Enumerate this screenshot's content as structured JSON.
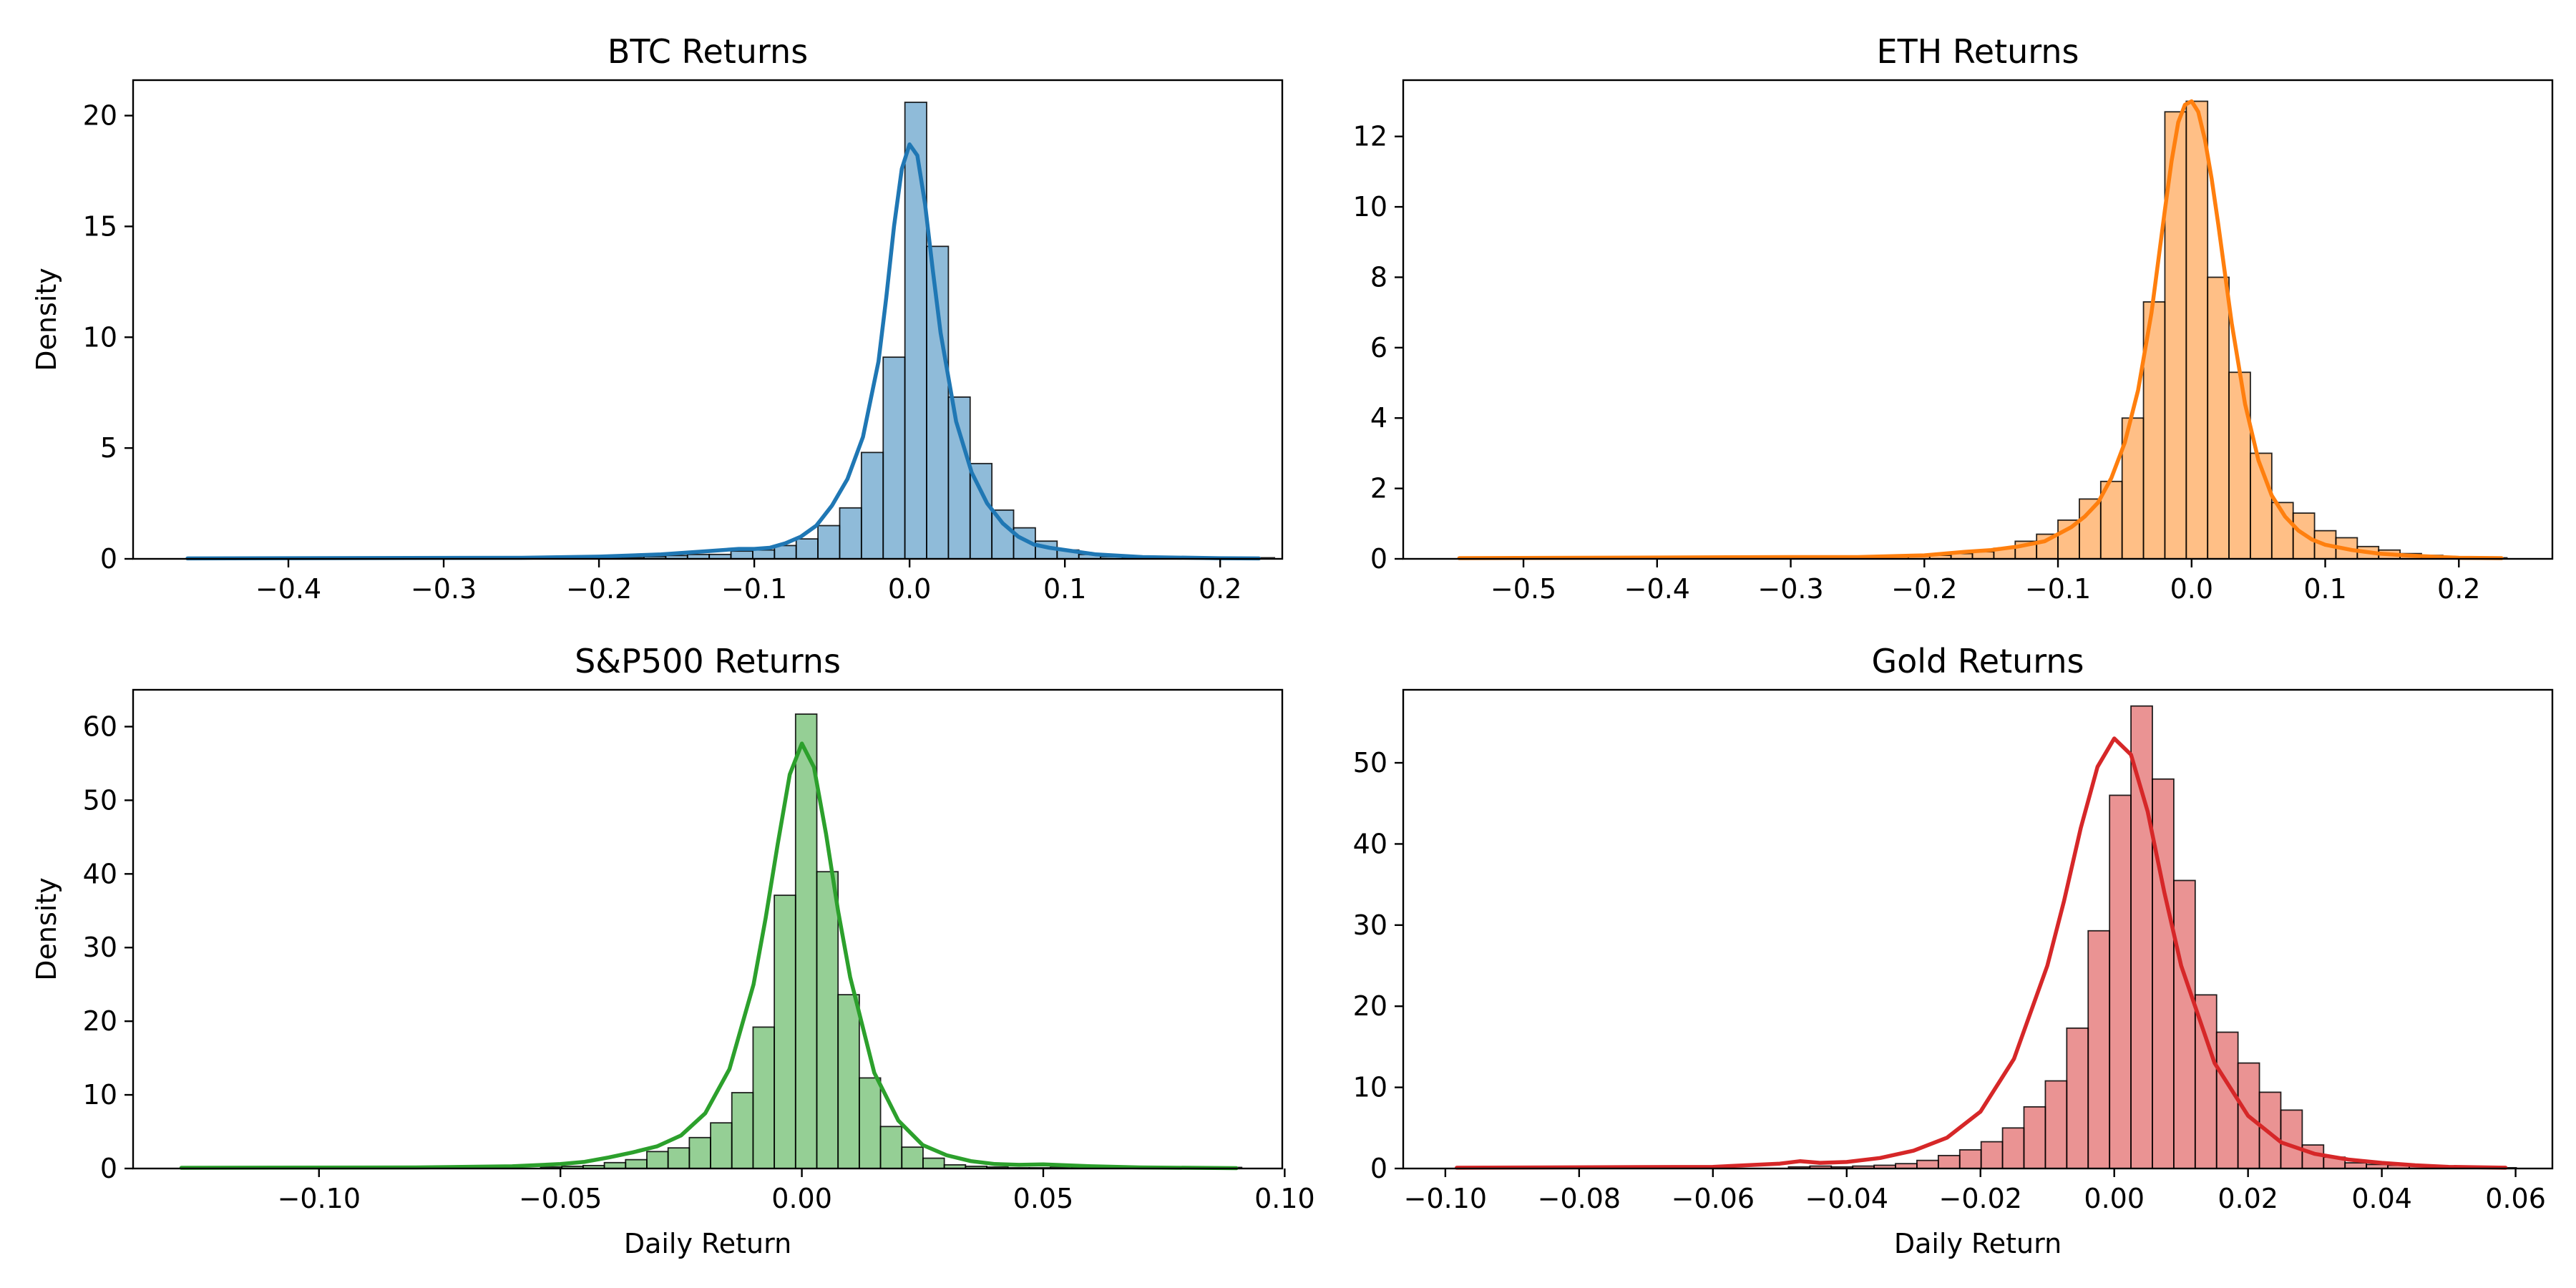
{
  "chart_data": [
    {
      "type": "histogram",
      "title": "BTC Returns",
      "xlabel": "",
      "ylabel": "Density",
      "color": "#1f77b4",
      "xlim": [
        -0.5,
        0.24
      ],
      "ylim": [
        0,
        21.6
      ],
      "xticks": [
        -0.4,
        -0.3,
        -0.2,
        -0.1,
        0.0,
        0.1,
        0.2
      ],
      "xtick_labels": [
        "−0.4",
        "−0.3",
        "−0.2",
        "−0.1",
        "0.0",
        "0.1",
        "0.2"
      ],
      "yticks": [
        0,
        5,
        10,
        15,
        20
      ],
      "ytick_labels": [
        "0",
        "5",
        "10",
        "15",
        "20"
      ],
      "bins": {
        "x": [
          -0.465,
          -0.451,
          -0.437,
          -0.423,
          -0.409,
          -0.395,
          -0.381,
          -0.367,
          -0.353,
          -0.339,
          -0.325,
          -0.311,
          -0.297,
          -0.283,
          -0.269,
          -0.255,
          -0.241,
          -0.227,
          -0.213,
          -0.199,
          -0.185,
          -0.171,
          -0.157,
          -0.143,
          -0.129,
          -0.115,
          -0.101,
          -0.087,
          -0.073,
          -0.059,
          -0.045,
          -0.031,
          -0.017,
          -0.003,
          0.011,
          0.025,
          0.039,
          0.053,
          0.067,
          0.081,
          0.095,
          0.109,
          0.123,
          0.137,
          0.151,
          0.165,
          0.179,
          0.193,
          0.207,
          0.221
        ],
        "density": [
          0.05,
          0,
          0,
          0,
          0,
          0,
          0,
          0,
          0,
          0,
          0,
          0,
          0,
          0,
          0,
          0,
          0,
          0,
          0,
          0.05,
          0.05,
          0.1,
          0.15,
          0.2,
          0.2,
          0.35,
          0.4,
          0.6,
          0.9,
          1.5,
          2.3,
          4.8,
          9.1,
          20.6,
          14.1,
          7.3,
          4.3,
          2.2,
          1.4,
          0.8,
          0.4,
          0.2,
          0.1,
          0.05,
          0.05,
          0,
          0,
          0,
          0,
          0.05
        ],
        "width": 0.014
      },
      "kde": {
        "x": [
          -0.465,
          -0.25,
          -0.2,
          -0.16,
          -0.13,
          -0.11,
          -0.1,
          -0.09,
          -0.08,
          -0.07,
          -0.06,
          -0.05,
          -0.04,
          -0.03,
          -0.02,
          -0.015,
          -0.01,
          -0.005,
          0.0,
          0.005,
          0.01,
          0.015,
          0.02,
          0.03,
          0.04,
          0.05,
          0.06,
          0.07,
          0.08,
          0.09,
          0.1,
          0.12,
          0.15,
          0.2,
          0.225
        ],
        "y": [
          0.02,
          0.05,
          0.1,
          0.2,
          0.35,
          0.45,
          0.45,
          0.5,
          0.7,
          1.0,
          1.5,
          2.4,
          3.6,
          5.5,
          8.9,
          11.8,
          15.0,
          17.6,
          18.7,
          18.2,
          16.0,
          13.0,
          10.2,
          6.2,
          3.9,
          2.5,
          1.6,
          1.0,
          0.65,
          0.5,
          0.4,
          0.2,
          0.08,
          0.03,
          0.02
        ]
      }
    },
    {
      "type": "histogram",
      "title": "ETH Returns",
      "xlabel": "",
      "ylabel": "",
      "color": "#ff7f0e",
      "xlim": [
        -0.59,
        0.27
      ],
      "ylim": [
        0,
        13.6
      ],
      "xticks": [
        -0.5,
        -0.4,
        -0.3,
        -0.2,
        -0.1,
        0.0,
        0.1,
        0.2
      ],
      "xtick_labels": [
        "−0.5",
        "−0.4",
        "−0.3",
        "−0.2",
        "−0.1",
        "0.0",
        "0.1",
        "0.2"
      ],
      "yticks": [
        0,
        2,
        4,
        6,
        8,
        10,
        12
      ],
      "ytick_labels": [
        "0",
        "2",
        "4",
        "6",
        "8",
        "10",
        "12"
      ],
      "bins": {
        "x": [
          -0.548,
          -0.532,
          -0.516,
          -0.5,
          -0.484,
          -0.468,
          -0.452,
          -0.436,
          -0.42,
          -0.404,
          -0.388,
          -0.372,
          -0.356,
          -0.34,
          -0.324,
          -0.308,
          -0.292,
          -0.276,
          -0.26,
          -0.244,
          -0.228,
          -0.212,
          -0.196,
          -0.18,
          -0.164,
          -0.148,
          -0.132,
          -0.116,
          -0.1,
          -0.084,
          -0.068,
          -0.052,
          -0.036,
          -0.02,
          -0.004,
          0.012,
          0.028,
          0.044,
          0.06,
          0.076,
          0.092,
          0.108,
          0.124,
          0.14,
          0.156,
          0.172,
          0.188,
          0.204,
          0.22
        ],
        "density": [
          0.03,
          0,
          0,
          0,
          0,
          0,
          0,
          0,
          0,
          0,
          0,
          0,
          0,
          0,
          0,
          0,
          0.03,
          0,
          0,
          0,
          0.05,
          0.08,
          0.1,
          0.15,
          0.2,
          0.3,
          0.5,
          0.7,
          1.1,
          1.7,
          2.2,
          4.0,
          7.3,
          12.7,
          13.0,
          8.0,
          5.3,
          3.0,
          1.6,
          1.3,
          0.8,
          0.6,
          0.35,
          0.25,
          0.15,
          0.1,
          0.05,
          0.05,
          0.03
        ],
        "width": 0.016
      },
      "kde": {
        "x": [
          -0.548,
          -0.3,
          -0.25,
          -0.2,
          -0.17,
          -0.15,
          -0.13,
          -0.11,
          -0.09,
          -0.08,
          -0.07,
          -0.06,
          -0.05,
          -0.04,
          -0.03,
          -0.02,
          -0.015,
          -0.01,
          -0.005,
          0.0,
          0.005,
          0.01,
          0.015,
          0.02,
          0.03,
          0.04,
          0.05,
          0.06,
          0.07,
          0.08,
          0.09,
          0.1,
          0.12,
          0.14,
          0.16,
          0.2,
          0.232
        ],
        "y": [
          0.02,
          0.05,
          0.05,
          0.1,
          0.2,
          0.25,
          0.35,
          0.5,
          0.9,
          1.2,
          1.6,
          2.3,
          3.3,
          4.8,
          7.0,
          9.9,
          11.3,
          12.4,
          12.9,
          13.0,
          12.7,
          11.9,
          10.8,
          9.5,
          6.7,
          4.4,
          2.8,
          1.8,
          1.2,
          0.8,
          0.55,
          0.4,
          0.25,
          0.15,
          0.1,
          0.03,
          0.02
        ]
      }
    },
    {
      "type": "histogram",
      "title": "S&P500 Returns",
      "xlabel": "Daily Return",
      "ylabel": "Density",
      "color": "#2ca02c",
      "xlim": [
        -0.1385,
        0.0995
      ],
      "ylim": [
        0,
        65
      ],
      "xticks": [
        -0.1,
        -0.05,
        0.0,
        0.05,
        0.1
      ],
      "xtick_labels": [
        "−0.10",
        "−0.05",
        "0.00",
        "0.05",
        "0.10"
      ],
      "yticks": [
        0,
        10,
        20,
        30,
        40,
        50,
        60
      ],
      "ytick_labels": [
        "0",
        "10",
        "20",
        "30",
        "40",
        "50",
        "60"
      ],
      "bins": {
        "x": [
          -0.1245,
          -0.1201,
          -0.1157,
          -0.1113,
          -0.1069,
          -0.1025,
          -0.0981,
          -0.0937,
          -0.0893,
          -0.0849,
          -0.0805,
          -0.0761,
          -0.0717,
          -0.0673,
          -0.0629,
          -0.0585,
          -0.0541,
          -0.0497,
          -0.0453,
          -0.0409,
          -0.0365,
          -0.0321,
          -0.0277,
          -0.0233,
          -0.0189,
          -0.0145,
          -0.0101,
          -0.0057,
          -0.0013,
          0.0031,
          0.0075,
          0.0119,
          0.0163,
          0.0207,
          0.0251,
          0.0295,
          0.0339,
          0.0383,
          0.0427,
          0.0471,
          0.0515,
          0.0559,
          0.0603,
          0.0647,
          0.0691,
          0.0735,
          0.0779,
          0.0823,
          0.0867
        ],
        "density": [
          0.15,
          0,
          0,
          0,
          0,
          0,
          0,
          0,
          0,
          0,
          0,
          0,
          0,
          0,
          0,
          0,
          0.2,
          0.3,
          0.4,
          0.8,
          1.2,
          2.3,
          2.8,
          4.2,
          6.2,
          10.3,
          19.2,
          37.1,
          61.7,
          40.3,
          23.6,
          12.3,
          5.7,
          2.9,
          1.4,
          0.5,
          0.3,
          0.2,
          0.1,
          0.1,
          0.2,
          0.1,
          0,
          0,
          0,
          0,
          0,
          0,
          0.15
        ],
        "width": 0.0044
      },
      "kde": {
        "x": [
          -0.1285,
          -0.08,
          -0.06,
          -0.05,
          -0.045,
          -0.04,
          -0.035,
          -0.03,
          -0.025,
          -0.02,
          -0.015,
          -0.01,
          -0.0075,
          -0.005,
          -0.0025,
          0.0,
          0.0025,
          0.005,
          0.0075,
          0.01,
          0.015,
          0.02,
          0.025,
          0.03,
          0.035,
          0.04,
          0.045,
          0.05,
          0.06,
          0.07,
          0.09
        ],
        "y": [
          0.1,
          0.15,
          0.3,
          0.6,
          0.9,
          1.5,
          2.2,
          3.0,
          4.5,
          7.5,
          13.5,
          25.0,
          34.0,
          44.0,
          53.5,
          57.7,
          54.5,
          45.5,
          35.0,
          26.0,
          13.0,
          6.5,
          3.2,
          1.8,
          1.0,
          0.6,
          0.5,
          0.55,
          0.3,
          0.15,
          0.05
        ]
      }
    },
    {
      "type": "histogram",
      "title": "Gold Returns",
      "xlabel": "Daily Return",
      "ylabel": "",
      "color": "#d62728",
      "xlim": [
        -0.1063,
        0.0655
      ],
      "ylim": [
        0,
        59
      ],
      "xticks": [
        -0.1,
        -0.08,
        -0.06,
        -0.04,
        -0.02,
        0.0,
        0.02,
        0.04,
        0.06
      ],
      "xtick_labels": [
        "−0.10",
        "−0.08",
        "−0.06",
        "−0.04",
        "−0.02",
        "0.00",
        "0.02",
        "0.04",
        "0.06"
      ],
      "yticks": [
        0,
        10,
        20,
        30,
        40,
        50
      ],
      "ytick_labels": [
        "0",
        "10",
        "20",
        "30",
        "40",
        "50"
      ],
      "bins": {
        "x": [
          -0.0967,
          -0.0935,
          -0.0903,
          -0.0871,
          -0.0839,
          -0.0807,
          -0.0775,
          -0.0743,
          -0.0711,
          -0.0679,
          -0.0647,
          -0.0615,
          -0.0583,
          -0.0551,
          -0.0519,
          -0.0487,
          -0.0455,
          -0.0423,
          -0.0391,
          -0.0359,
          -0.0327,
          -0.0295,
          -0.0263,
          -0.0231,
          -0.0199,
          -0.0167,
          -0.0135,
          -0.0103,
          -0.0071,
          -0.0039,
          -0.0007,
          0.0025,
          0.0057,
          0.0089,
          0.0121,
          0.0153,
          0.0185,
          0.0217,
          0.0249,
          0.0281,
          0.0313,
          0.0345,
          0.0377,
          0.0409,
          0.0441,
          0.0473,
          0.0505,
          0.0537,
          0.0569
        ],
        "density": [
          0.15,
          0,
          0,
          0,
          0,
          0,
          0,
          0,
          0,
          0,
          0,
          0,
          0,
          0,
          0,
          0.2,
          0.3,
          0.2,
          0.3,
          0.4,
          0.6,
          1.0,
          1.6,
          2.3,
          3.3,
          5.0,
          7.6,
          10.8,
          17.3,
          29.3,
          46.0,
          57.0,
          48.0,
          35.5,
          21.4,
          16.8,
          13.0,
          9.4,
          7.2,
          2.9,
          1.4,
          0.7,
          0.5,
          0.4,
          0.3,
          0.2,
          0.1,
          0.1,
          0.1
        ],
        "width": 0.0032
      },
      "kde": {
        "x": [
          -0.0983,
          -0.06,
          -0.05,
          -0.047,
          -0.044,
          -0.04,
          -0.035,
          -0.03,
          -0.025,
          -0.02,
          -0.015,
          -0.01,
          -0.0075,
          -0.005,
          -0.0025,
          0.0,
          0.0025,
          0.005,
          0.0075,
          0.01,
          0.015,
          0.02,
          0.025,
          0.03,
          0.035,
          0.04,
          0.045,
          0.05,
          0.0585
        ],
        "y": [
          0.1,
          0.2,
          0.6,
          0.9,
          0.7,
          0.8,
          1.3,
          2.2,
          3.8,
          7.0,
          13.5,
          25.0,
          33.0,
          42.0,
          49.5,
          53.0,
          51.0,
          44.0,
          34.0,
          25.0,
          13.0,
          6.5,
          3.2,
          1.8,
          1.1,
          0.7,
          0.4,
          0.2,
          0.1
        ]
      }
    }
  ]
}
